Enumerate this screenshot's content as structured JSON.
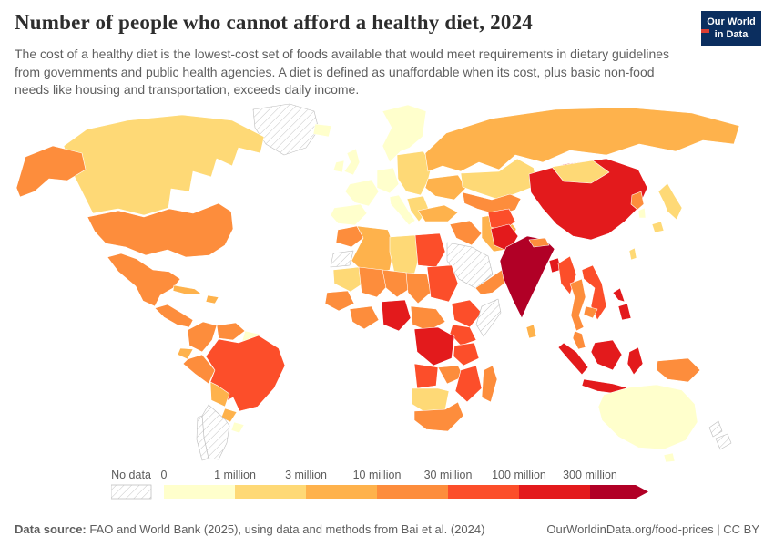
{
  "header": {
    "title": "Number of people who cannot afford a healthy diet, 2024",
    "subtitle": "The cost of a healthy diet is the lowest-cost set of foods available that would meet requirements in dietary guidelines from governments and public health agencies. A diet is defined as unaffordable when its cost, plus basic non-food needs like housing and transportation, exceeds daily income."
  },
  "branding": {
    "logo_line1": "Our World",
    "logo_line2": "in Data",
    "logo_bg": "#0b2e5f",
    "logo_accent": "#dc3e32"
  },
  "footer": {
    "source_label": "Data source:",
    "source_text": " FAO and World Bank (2025), using data and methods from Bai et al. (2024)",
    "link_text": "OurWorldinData.org/food-prices | CC BY"
  },
  "chart_data": {
    "type": "choropleth_map",
    "title": "Number of people who cannot afford a healthy diet, 2024",
    "legend_labels": [
      "0",
      "1 million",
      "3 million",
      "10 million",
      "30 million",
      "100 million",
      "300 million"
    ],
    "legend_colors": [
      "#ffffcc",
      "#fed976",
      "#feb24c",
      "#fd8d3c",
      "#fc4e2a",
      "#e31a1c",
      "#b10026"
    ],
    "no_data_label": "No data",
    "bin_colors": {
      "0-1m": "#ffffcc",
      "1-3m": "#fed976",
      "3-10m": "#feb24c",
      "10-30m": "#fd8d3c",
      "30-100m": "#fc4e2a",
      "100-300m": "#e31a1c",
      "300m+": "#b10026",
      "no-data": "hatch"
    },
    "countries": [
      {
        "id": "greenland",
        "name": "Greenland",
        "bin": "no-data"
      },
      {
        "id": "iceland",
        "name": "Iceland",
        "bin": "0-1m"
      },
      {
        "id": "canada",
        "name": "Canada",
        "bin": "1-3m"
      },
      {
        "id": "usa",
        "name": "United States",
        "bin": "10-30m"
      },
      {
        "id": "mexico",
        "name": "Mexico",
        "bin": "10-30m"
      },
      {
        "id": "central-america",
        "name": "Central America",
        "bin": "10-30m"
      },
      {
        "id": "cuba",
        "name": "Cuba",
        "bin": "3-10m"
      },
      {
        "id": "hispaniola",
        "name": "Haiti and Dominican Republic",
        "bin": "3-10m"
      },
      {
        "id": "colombia",
        "name": "Colombia",
        "bin": "10-30m"
      },
      {
        "id": "venezuela",
        "name": "Venezuela",
        "bin": "10-30m"
      },
      {
        "id": "guyanas",
        "name": "Guyana and Suriname",
        "bin": "0-1m"
      },
      {
        "id": "ecuador",
        "name": "Ecuador",
        "bin": "3-10m"
      },
      {
        "id": "peru",
        "name": "Peru",
        "bin": "10-30m"
      },
      {
        "id": "brazil",
        "name": "Brazil",
        "bin": "30-100m"
      },
      {
        "id": "bolivia",
        "name": "Bolivia",
        "bin": "3-10m"
      },
      {
        "id": "paraguay",
        "name": "Paraguay",
        "bin": "3-10m"
      },
      {
        "id": "uruguay",
        "name": "Uruguay",
        "bin": "0-1m"
      },
      {
        "id": "argentina",
        "name": "Argentina",
        "bin": "no-data"
      },
      {
        "id": "chile",
        "name": "Chile",
        "bin": "no-data"
      },
      {
        "id": "uk",
        "name": "United Kingdom",
        "bin": "0-1m"
      },
      {
        "id": "ireland",
        "name": "Ireland",
        "bin": "0-1m"
      },
      {
        "id": "nordics",
        "name": "Nordic countries",
        "bin": "0-1m"
      },
      {
        "id": "france",
        "name": "France",
        "bin": "0-1m"
      },
      {
        "id": "spain",
        "name": "Spain",
        "bin": "0-1m"
      },
      {
        "id": "germany",
        "name": "Germany",
        "bin": "0-1m"
      },
      {
        "id": "italy",
        "name": "Italy",
        "bin": "0-1m"
      },
      {
        "id": "eastern-europe",
        "name": "Eastern Europe",
        "bin": "1-3m"
      },
      {
        "id": "balkans",
        "name": "Balkans",
        "bin": "1-3m"
      },
      {
        "id": "ukraine",
        "name": "Ukraine",
        "bin": "3-10m"
      },
      {
        "id": "russia",
        "name": "Russia",
        "bin": "3-10m"
      },
      {
        "id": "kazakhstan",
        "name": "Kazakhstan",
        "bin": "1-3m"
      },
      {
        "id": "central-asia",
        "name": "Central Asia",
        "bin": "10-30m"
      },
      {
        "id": "turkey",
        "name": "Turkey",
        "bin": "3-10m"
      },
      {
        "id": "iraq-syria",
        "name": "Iraq and Syria",
        "bin": "10-30m"
      },
      {
        "id": "iran",
        "name": "Iran",
        "bin": "3-10m"
      },
      {
        "id": "saudi-arabia",
        "name": "Saudi Arabia",
        "bin": "no-data"
      },
      {
        "id": "yemen-oman",
        "name": "Yemen and Oman",
        "bin": "10-30m"
      },
      {
        "id": "western-sahara",
        "name": "Western Sahara",
        "bin": "no-data"
      },
      {
        "id": "morocco",
        "name": "Morocco",
        "bin": "10-30m"
      },
      {
        "id": "algeria",
        "name": "Algeria",
        "bin": "3-10m"
      },
      {
        "id": "libya",
        "name": "Libya",
        "bin": "1-3m"
      },
      {
        "id": "egypt",
        "name": "Egypt",
        "bin": "30-100m"
      },
      {
        "id": "mauritania",
        "name": "Mauritania",
        "bin": "1-3m"
      },
      {
        "id": "mali",
        "name": "Mali",
        "bin": "10-30m"
      },
      {
        "id": "niger",
        "name": "Niger",
        "bin": "10-30m"
      },
      {
        "id": "chad",
        "name": "Chad",
        "bin": "10-30m"
      },
      {
        "id": "sudan",
        "name": "Sudan",
        "bin": "30-100m"
      },
      {
        "id": "senegal-guinea",
        "name": "Senegal and Guinea",
        "bin": "10-30m"
      },
      {
        "id": "ivory-ghana",
        "name": "Cote d'Ivoire and Ghana",
        "bin": "10-30m"
      },
      {
        "id": "nigeria",
        "name": "Nigeria",
        "bin": "100-300m"
      },
      {
        "id": "cameroon-car",
        "name": "Cameroon and Central African Republic",
        "bin": "10-30m"
      },
      {
        "id": "ethiopia",
        "name": "Ethiopia",
        "bin": "30-100m"
      },
      {
        "id": "somalia",
        "name": "Somalia",
        "bin": "no-data"
      },
      {
        "id": "kenya-uganda",
        "name": "Kenya and Uganda",
        "bin": "30-100m"
      },
      {
        "id": "drc",
        "name": "Democratic Republic of Congo",
        "bin": "100-300m"
      },
      {
        "id": "tanzania",
        "name": "Tanzania",
        "bin": "30-100m"
      },
      {
        "id": "angola",
        "name": "Angola",
        "bin": "30-100m"
      },
      {
        "id": "zambia",
        "name": "Zambia",
        "bin": "10-30m"
      },
      {
        "id": "mozambique",
        "name": "Mozambique and Zimbabwe",
        "bin": "30-100m"
      },
      {
        "id": "namibia-botswana",
        "name": "Namibia and Botswana",
        "bin": "1-3m"
      },
      {
        "id": "south-africa",
        "name": "South Africa",
        "bin": "10-30m"
      },
      {
        "id": "madagascar",
        "name": "Madagascar",
        "bin": "10-30m"
      },
      {
        "id": "afghanistan",
        "name": "Afghanistan",
        "bin": "30-100m"
      },
      {
        "id": "pakistan",
        "name": "Pakistan",
        "bin": "100-300m"
      },
      {
        "id": "india",
        "name": "India",
        "bin": "300m+"
      },
      {
        "id": "nepal",
        "name": "Nepal",
        "bin": "10-30m"
      },
      {
        "id": "bangladesh",
        "name": "Bangladesh",
        "bin": "100-300m"
      },
      {
        "id": "sri-lanka",
        "name": "Sri Lanka",
        "bin": "3-10m"
      },
      {
        "id": "china",
        "name": "China",
        "bin": "100-300m"
      },
      {
        "id": "mongolia",
        "name": "Mongolia",
        "bin": "1-3m"
      },
      {
        "id": "myanmar",
        "name": "Myanmar",
        "bin": "30-100m"
      },
      {
        "id": "thailand",
        "name": "Thailand",
        "bin": "10-30m"
      },
      {
        "id": "vietnam-laos",
        "name": "Vietnam and Laos",
        "bin": "30-100m"
      },
      {
        "id": "cambodia",
        "name": "Cambodia",
        "bin": "10-30m"
      },
      {
        "id": "malaysia",
        "name": "Malaysia",
        "bin": "10-30m"
      },
      {
        "id": "indonesia",
        "name": "Indonesia",
        "bin": "100-300m"
      },
      {
        "id": "new-guinea",
        "name": "Papua New Guinea",
        "bin": "10-30m"
      },
      {
        "id": "philippines",
        "name": "Philippines",
        "bin": "100-300m"
      },
      {
        "id": "north-korea",
        "name": "North Korea",
        "bin": "10-30m"
      },
      {
        "id": "south-korea",
        "name": "South Korea",
        "bin": "0-1m"
      },
      {
        "id": "japan",
        "name": "Japan",
        "bin": "1-3m"
      },
      {
        "id": "taiwan",
        "name": "Taiwan",
        "bin": "1-3m"
      },
      {
        "id": "australia",
        "name": "Australia",
        "bin": "0-1m"
      },
      {
        "id": "new-zealand",
        "name": "New Zealand",
        "bin": "no-data"
      }
    ]
  }
}
